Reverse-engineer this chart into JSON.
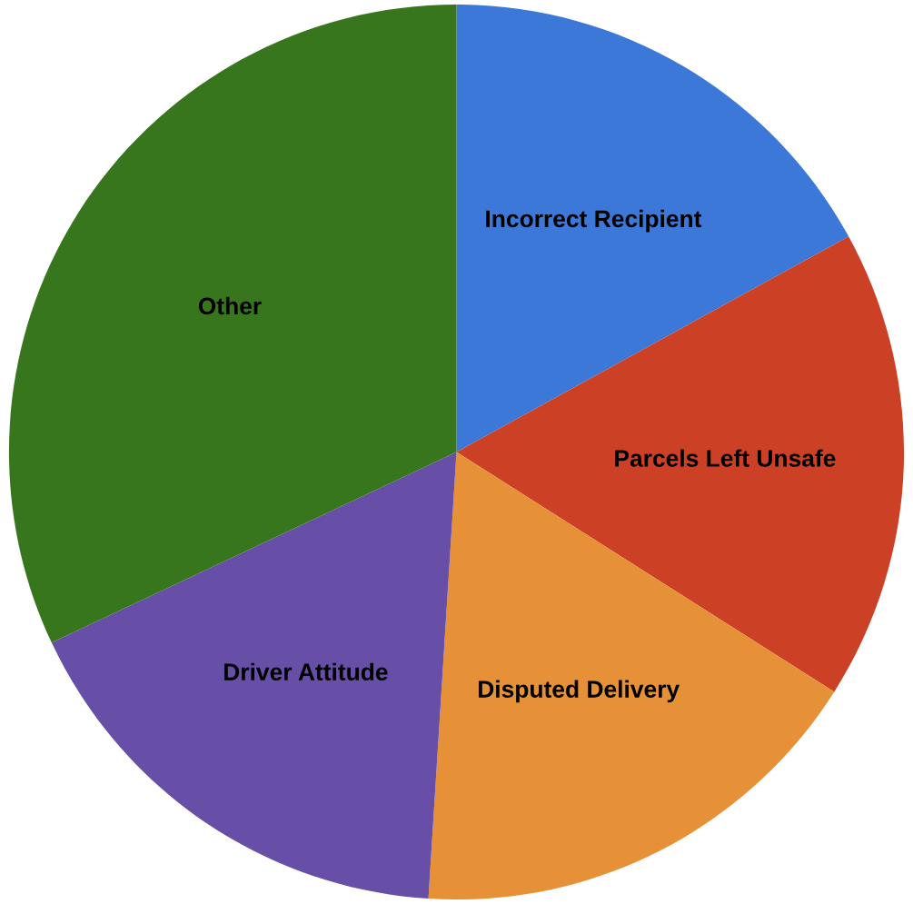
{
  "chart_data": {
    "type": "pie",
    "categories": [
      "Incorrect Recipient",
      "Parcels Left Unsafe",
      "Disputed Delivery",
      "Driver Attitude",
      "Other"
    ],
    "values": [
      17,
      17,
      17,
      17,
      32
    ],
    "colors": [
      "#3c78d8",
      "#cc4125",
      "#e69138",
      "#674ea7",
      "#38761d"
    ],
    "legend": false
  }
}
